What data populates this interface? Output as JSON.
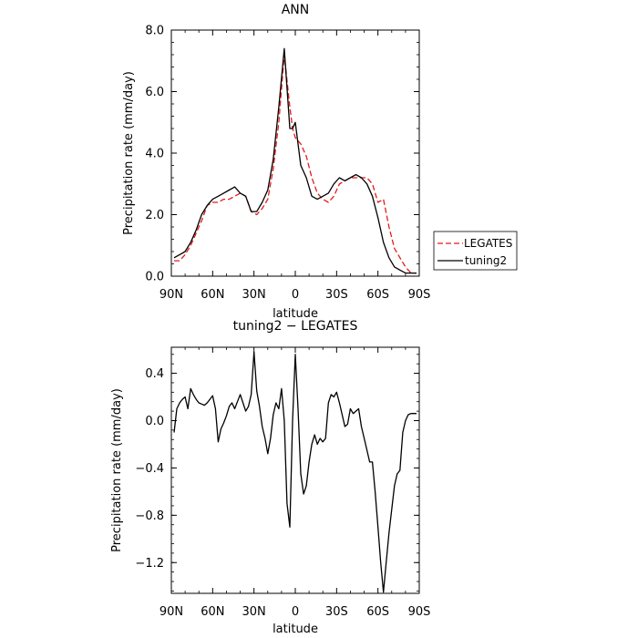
{
  "chart_data": [
    {
      "type": "line",
      "title": "ANN",
      "xlabel": "latitude",
      "ylabel": "Precipitation rate (mm/day)",
      "xlim": [
        90,
        -90
      ],
      "ylim": [
        0,
        8
      ],
      "xticks": [
        90,
        60,
        30,
        0,
        -30,
        -60,
        -90
      ],
      "xtick_labels": [
        "90N",
        "60N",
        "30N",
        "0",
        "30S",
        "60S",
        "90S"
      ],
      "yticks": [
        0,
        2,
        4,
        6,
        8
      ],
      "ytick_labels": [
        "0.0",
        "2.0",
        "4.0",
        "6.0",
        "8.0"
      ],
      "legend": "outside-right",
      "series": [
        {
          "name": "LEGATES",
          "color": "#e41a1c",
          "dash": "dashed",
          "x": [
            88,
            84,
            80,
            76,
            72,
            68,
            64,
            60,
            56,
            52,
            48,
            44,
            40,
            36,
            32,
            28,
            24,
            20,
            16,
            12,
            8,
            4,
            2,
            0,
            -4,
            -8,
            -12,
            -16,
            -20,
            -24,
            -28,
            -32,
            -36,
            -40,
            -44,
            -48,
            -52,
            -56,
            -60,
            -64,
            -68,
            -72,
            -76,
            -80,
            -84,
            -88
          ],
          "y": [
            0.5,
            0.5,
            0.7,
            1.0,
            1.4,
            1.8,
            2.3,
            2.4,
            2.4,
            2.5,
            2.5,
            2.6,
            2.7,
            2.6,
            2.1,
            2.0,
            2.2,
            2.5,
            3.5,
            5.0,
            7.2,
            5.5,
            4.8,
            4.5,
            4.3,
            3.9,
            3.2,
            2.7,
            2.5,
            2.4,
            2.6,
            3.0,
            3.1,
            3.2,
            3.2,
            3.2,
            3.2,
            3.0,
            2.4,
            2.5,
            1.6,
            0.9,
            0.6,
            0.3,
            0.1,
            0.1
          ]
        },
        {
          "name": "tuning2",
          "color": "#000000",
          "dash": "solid",
          "x": [
            88,
            84,
            80,
            76,
            72,
            68,
            64,
            60,
            56,
            52,
            48,
            44,
            40,
            36,
            32,
            28,
            24,
            20,
            16,
            12,
            8,
            4,
            2,
            0,
            -4,
            -8,
            -12,
            -16,
            -20,
            -24,
            -28,
            -32,
            -36,
            -40,
            -44,
            -48,
            -52,
            -56,
            -60,
            -64,
            -68,
            -72,
            -76,
            -80,
            -84,
            -88
          ],
          "y": [
            0.6,
            0.7,
            0.8,
            1.1,
            1.5,
            2.0,
            2.3,
            2.5,
            2.6,
            2.7,
            2.8,
            2.9,
            2.7,
            2.6,
            2.1,
            2.1,
            2.4,
            2.8,
            3.8,
            5.5,
            7.4,
            4.8,
            4.8,
            5.0,
            3.6,
            3.2,
            2.6,
            2.5,
            2.6,
            2.7,
            3.0,
            3.2,
            3.1,
            3.2,
            3.3,
            3.2,
            3.0,
            2.6,
            1.9,
            1.1,
            0.6,
            0.3,
            0.2,
            0.1,
            0.1,
            0.1
          ]
        }
      ]
    },
    {
      "type": "line",
      "title": "tuning2 − LEGATES",
      "xlabel": "latitude",
      "ylabel": "Precipitation rate (mm/day)",
      "xlim": [
        90,
        -90
      ],
      "ylim": [
        -1.46,
        0.62
      ],
      "xticks": [
        90,
        60,
        30,
        0,
        -30,
        -60,
        -90
      ],
      "xtick_labels": [
        "90N",
        "60N",
        "30N",
        "0",
        "30S",
        "60S",
        "90S"
      ],
      "yticks": [
        0.4,
        0.0,
        -0.4,
        -0.8,
        -1.2
      ],
      "ytick_labels": [
        "0.4",
        "0.0",
        "−0.4",
        "−0.8",
        "−1.2"
      ],
      "series": [
        {
          "name": "tuning2 − LEGATES",
          "color": "#000000",
          "dash": "solid",
          "x": [
            88,
            86,
            84,
            82,
            80,
            78,
            76,
            74,
            72,
            70,
            68,
            66,
            64,
            62,
            60,
            58,
            56,
            54,
            52,
            50,
            48,
            46,
            44,
            42,
            40,
            38,
            36,
            34,
            32,
            30,
            28,
            26,
            24,
            22,
            20,
            18,
            16,
            14,
            12,
            10,
            8,
            6,
            4,
            2,
            0,
            -2,
            -4,
            -6,
            -8,
            -10,
            -12,
            -14,
            -16,
            -18,
            -20,
            -22,
            -24,
            -26,
            -28,
            -30,
            -32,
            -34,
            -36,
            -38,
            -40,
            -42,
            -44,
            -46,
            -48,
            -50,
            -52,
            -54,
            -56,
            -58,
            -60,
            -62,
            -64,
            -66,
            -68,
            -70,
            -72,
            -74,
            -76,
            -78,
            -80,
            -82,
            -84,
            -86,
            -88
          ],
          "y": [
            -0.1,
            0.1,
            0.15,
            0.18,
            0.2,
            0.1,
            0.27,
            0.22,
            0.18,
            0.15,
            0.14,
            0.13,
            0.15,
            0.18,
            0.21,
            0.1,
            -0.18,
            -0.07,
            -0.02,
            0.04,
            0.12,
            0.15,
            0.1,
            0.16,
            0.22,
            0.15,
            0.08,
            0.12,
            0.22,
            0.58,
            0.25,
            0.12,
            -0.05,
            -0.15,
            -0.28,
            -0.15,
            0.05,
            0.15,
            0.1,
            0.27,
            0.0,
            -0.7,
            -0.9,
            0.0,
            0.56,
            0.1,
            -0.45,
            -0.62,
            -0.55,
            -0.35,
            -0.2,
            -0.12,
            -0.2,
            -0.15,
            -0.18,
            -0.15,
            0.15,
            0.22,
            0.2,
            0.24,
            0.15,
            0.05,
            -0.05,
            -0.03,
            0.1,
            0.06,
            0.08,
            0.1,
            -0.05,
            -0.15,
            -0.25,
            -0.35,
            -0.35,
            -0.6,
            -0.9,
            -1.2,
            -1.45,
            -1.2,
            -0.95,
            -0.75,
            -0.55,
            -0.45,
            -0.42,
            -0.1,
            0.0,
            0.05,
            0.06,
            0.06,
            0.06
          ]
        }
      ]
    }
  ]
}
